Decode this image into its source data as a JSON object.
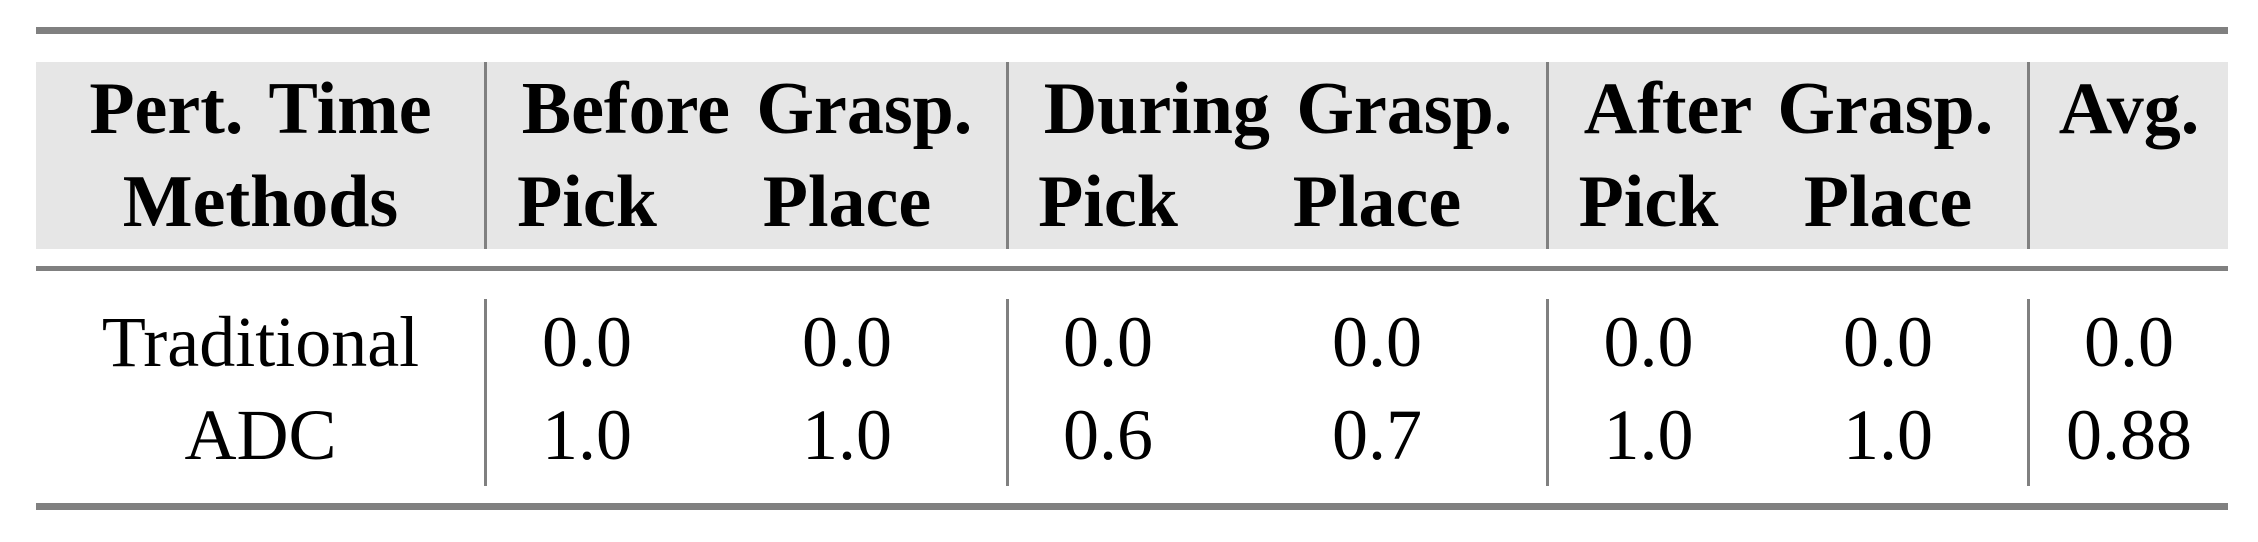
{
  "header": {
    "row1": [
      "Pert. Time",
      "Before Grasp.",
      "During Grasp.",
      "After Grasp.",
      "Avg."
    ],
    "row2": [
      "Methods",
      "Pick",
      "Place",
      "Pick",
      "Place",
      "Pick",
      "Place"
    ]
  },
  "rows": [
    {
      "method": "Traditional",
      "values": [
        "0.0",
        "0.0",
        "0.0",
        "0.0",
        "0.0",
        "0.0",
        "0.0"
      ]
    },
    {
      "method": "ADC",
      "values": [
        "1.0",
        "1.0",
        "0.6",
        "0.7",
        "1.0",
        "1.0",
        "0.88"
      ]
    }
  ],
  "colors": {
    "header_bg": "#e6e6e6",
    "rule": "#808080"
  }
}
